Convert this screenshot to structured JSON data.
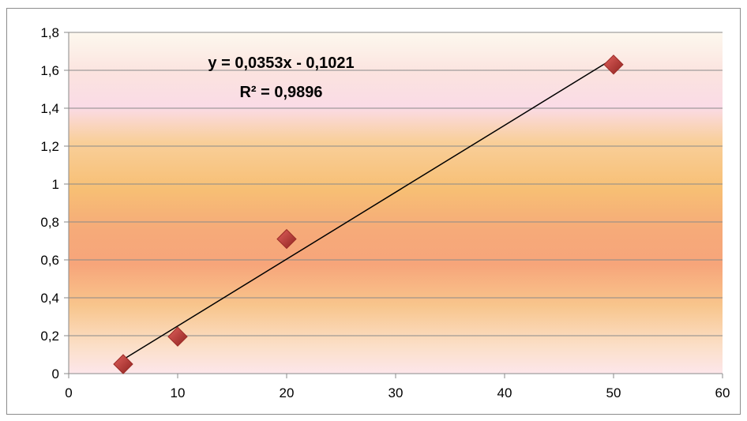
{
  "chart_data": {
    "type": "scatter",
    "title": "",
    "xlabel": "",
    "ylabel": "",
    "xlim": [
      0,
      60
    ],
    "ylim": [
      0,
      1.8
    ],
    "x_ticks": [
      "0",
      "10",
      "20",
      "30",
      "40",
      "50",
      "60"
    ],
    "y_ticks": [
      "0",
      "0,2",
      "0,4",
      "0,6",
      "0,8",
      "1",
      "1,2",
      "1,4",
      "1,6",
      "1,8"
    ],
    "grid": "horizontal",
    "legend": "none",
    "series": [
      {
        "marker": "diamond",
        "color": "#c0504d",
        "x": [
          5,
          10,
          20,
          50
        ],
        "y": [
          0.05,
          0.195,
          0.71,
          1.63
        ]
      }
    ],
    "trendline": {
      "type": "linear",
      "color": "#000000",
      "slope": 0.0353,
      "intercept": -0.1021,
      "x_range": [
        5,
        50
      ],
      "equation_label": "y = 0,0353x - 0,1021",
      "r2_label": "R² = 0,9896"
    },
    "plot_background": "orange-pink horizontal gradient"
  }
}
